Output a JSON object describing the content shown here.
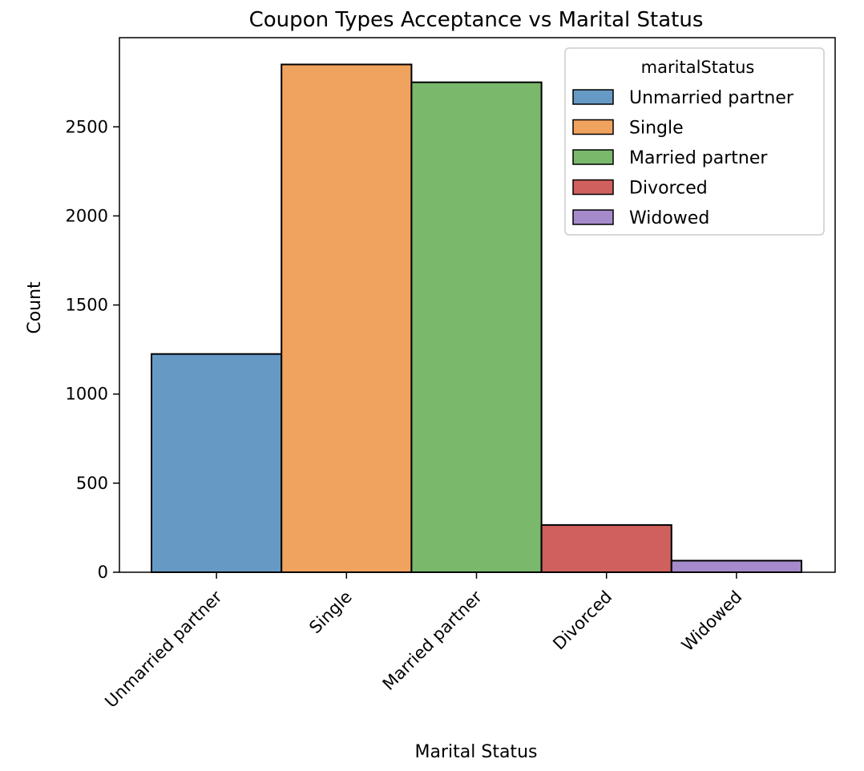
{
  "chart_data": {
    "type": "bar",
    "title": "Coupon Types Acceptance vs Marital Status",
    "xlabel": "Marital Status",
    "ylabel": "Count",
    "categories": [
      "Unmarried partner",
      "Single",
      "Married partner",
      "Divorced",
      "Widowed"
    ],
    "values": [
      1225,
      2850,
      2750,
      265,
      65
    ],
    "colors": [
      "#6699c4",
      "#f0a35e",
      "#7ab86c",
      "#d0605e",
      "#a68bcc"
    ],
    "ylim": [
      0,
      3000
    ],
    "yticks": [
      0,
      500,
      1000,
      1500,
      2000,
      2500
    ],
    "grid": false,
    "legend": {
      "title": "maritalStatus",
      "placement": "top-right",
      "entries": [
        "Unmarried partner",
        "Single",
        "Married partner",
        "Divorced",
        "Widowed"
      ]
    }
  }
}
